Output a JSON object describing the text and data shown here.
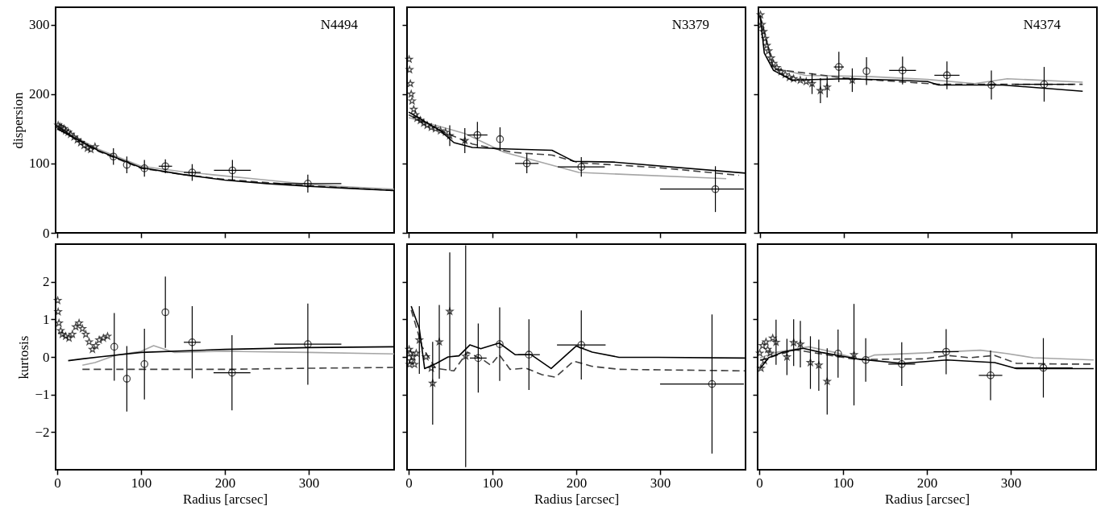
{
  "chart_data": [
    {
      "type": "scatter",
      "title": "N4494",
      "ylabel": "dispersion",
      "xlim": [
        -2,
        402
      ],
      "xticks": [
        0,
        100,
        200,
        300
      ],
      "ylim": [
        0,
        325
      ],
      "yticks": [
        0,
        100,
        200,
        300
      ],
      "tick_labels": "y",
      "series": [
        {
          "type": "line",
          "color": "#a6a6a6",
          "line_style": "solid",
          "x": [
            0,
            50,
            100,
            150,
            200,
            250,
            300,
            350,
            402
          ],
          "values": [
            152,
            120,
            96,
            88,
            82,
            76,
            70,
            66,
            63
          ]
        },
        {
          "type": "line",
          "color": "#404040",
          "line_style": "dashed",
          "x": [
            0,
            50,
            100,
            150,
            200,
            300,
            402
          ],
          "values": [
            150,
            117,
            93,
            84,
            77,
            68,
            61
          ]
        },
        {
          "type": "line",
          "color": "#000000",
          "line_style": "solid",
          "x": [
            0,
            50,
            100,
            150,
            200,
            250,
            300,
            350,
            402
          ],
          "values": [
            150,
            118,
            94,
            84,
            76,
            71,
            67,
            64,
            61
          ]
        },
        {
          "type": "scatter",
          "marker": "star",
          "color": "#000000",
          "x": [
            1,
            3,
            5,
            8,
            10,
            13,
            16,
            20,
            24,
            28,
            32,
            36,
            40,
            45
          ],
          "values": [
            155,
            153,
            152,
            150,
            147,
            145,
            142,
            138,
            134,
            130,
            126,
            122,
            120,
            124
          ]
        },
        {
          "marker": "circle",
          "color": "#000000",
          "x": [
            67,
            83,
            104,
            129,
            161,
            209,
            299
          ],
          "values": [
            110,
            98,
            93,
            96,
            87,
            90,
            71
          ],
          "errors": [
            12,
            12,
            12,
            10,
            12,
            15,
            13
          ],
          "xerrors": [
            null,
            null,
            null,
            8,
            10,
            22,
            40
          ]
        }
      ]
    },
    {
      "type": "scatter",
      "title": "N3379",
      "xlim": [
        -2,
        402
      ],
      "xticks": [
        0,
        100,
        200,
        300
      ],
      "ylim": [
        0,
        325
      ],
      "yticks": [
        0,
        100,
        200,
        300
      ],
      "tick_labels": false,
      "series": [
        {
          "type": "line",
          "color": "#a6a6a6",
          "line_style": "solid",
          "x": [
            0,
            67,
            114,
            203,
            379
          ],
          "values": [
            166,
            143,
            116,
            87,
            78
          ]
        },
        {
          "type": "line",
          "color": "#404040",
          "line_style": "dashed",
          "x": [
            0,
            44,
            76,
            124,
            171,
            203,
            298,
            394
          ],
          "values": [
            170,
            144,
            128,
            116,
            112,
            101,
            94,
            83
          ]
        },
        {
          "type": "line",
          "color": "#000000",
          "line_style": "solid",
          "x": [
            0,
            38,
            54,
            76,
            114,
            171,
            184,
            197,
            244,
            402
          ],
          "values": [
            174,
            147,
            130,
            123,
            121,
            119,
            111,
            103,
            102,
            86
          ]
        },
        {
          "type": "scatter",
          "marker": "star",
          "color": "#000000",
          "x": [
            0.5,
            1,
            2,
            3,
            4,
            6,
            8,
            10,
            14,
            18,
            22,
            27,
            32,
            38,
            44,
            49,
            67
          ],
          "values": [
            250,
            235,
            215,
            200,
            190,
            178,
            170,
            165,
            162,
            158,
            155,
            152,
            150,
            147,
            145,
            140,
            133
          ],
          "errors": [
            null,
            null,
            null,
            null,
            null,
            null,
            null,
            null,
            null,
            null,
            null,
            null,
            null,
            null,
            null,
            15,
            18
          ]
        },
        {
          "marker": "circle",
          "color": "#000000",
          "x": [
            82,
            109,
            141,
            206,
            366
          ],
          "values": [
            141,
            135,
            100,
            95,
            63
          ],
          "errors": [
            19,
            17,
            14,
            14,
            33
          ],
          "xerrors": [
            12,
            null,
            14,
            28,
            [
              300,
              400
            ]
          ]
        }
      ]
    },
    {
      "type": "scatter",
      "title": "N4374",
      "xlim": [
        -2,
        402
      ],
      "xticks": [
        0,
        100,
        200,
        300
      ],
      "ylim": [
        0,
        325
      ],
      "yticks": [
        0,
        100,
        200,
        300
      ],
      "tick_labels": false,
      "series": [
        {
          "type": "line",
          "color": "#a6a6a6",
          "line_style": "solid",
          "x": [
            0,
            16,
            54,
            133,
            200,
            256,
            295,
            385
          ],
          "values": [
            310,
            238,
            227,
            225,
            221,
            215,
            222,
            217
          ]
        },
        {
          "type": "line",
          "color": "#404040",
          "line_style": "dashed",
          "x": [
            0,
            16,
            101,
            213,
            385
          ],
          "values": [
            312,
            236,
            223,
            214,
            214
          ]
        },
        {
          "type": "line",
          "color": "#000000",
          "line_style": "solid",
          "x": [
            0,
            5,
            16,
            38,
            101,
            165,
            200,
            213,
            289,
            385
          ],
          "values": [
            314,
            259,
            234,
            220,
            222,
            220,
            218,
            213,
            213,
            204
          ]
        },
        {
          "type": "scatter",
          "marker": "star",
          "color": "#000000",
          "x": [
            0.5,
            2,
            4,
            6,
            8,
            10,
            13,
            16,
            20,
            25,
            30,
            35,
            40,
            48,
            55,
            62,
            72,
            80,
            110
          ],
          "values": [
            314,
            300,
            290,
            280,
            270,
            262,
            252,
            244,
            238,
            232,
            228,
            224,
            222,
            220,
            218,
            215,
            205,
            210,
            220
          ],
          "errors": [
            null,
            null,
            null,
            null,
            null,
            null,
            null,
            null,
            null,
            null,
            null,
            null,
            null,
            null,
            null,
            15,
            18,
            15,
            17
          ]
        },
        {
          "marker": "circle",
          "color": "#000000",
          "x": [
            94,
            127,
            170,
            223,
            276,
            339
          ],
          "values": [
            239,
            233,
            234,
            227,
            213,
            214
          ],
          "errors": [
            22,
            20,
            20,
            20,
            21,
            25
          ],
          "xerrors": [
            6,
            null,
            16,
            15,
            14,
            35
          ]
        }
      ]
    },
    {
      "type": "scatter",
      "xlabel": "Radius [arcsec]",
      "ylabel": "kurtosis",
      "xlim": [
        -2,
        402
      ],
      "xticks": [
        0,
        100,
        200,
        300
      ],
      "ylim": [
        -3,
        3
      ],
      "yticks": [
        -2,
        -1,
        0,
        1,
        2
      ],
      "series": [
        {
          "type": "line",
          "color": "#a6a6a6",
          "line_style": "solid",
          "x": [
            30,
            45,
            70,
            100,
            115,
            140,
            200,
            300,
            402
          ],
          "values": [
            -0.22,
            -0.15,
            0.05,
            0.15,
            0.3,
            0.12,
            0.15,
            0.12,
            0.08
          ]
        },
        {
          "type": "line",
          "color": "#404040",
          "line_style": "dashed",
          "x": [
            30,
            100,
            200,
            300,
            402
          ],
          "values": [
            -0.33,
            -0.33,
            -0.33,
            -0.3,
            -0.28
          ]
        },
        {
          "type": "line",
          "color": "#000000",
          "line_style": "solid",
          "x": [
            13,
            30,
            50,
            100,
            200,
            300,
            402
          ],
          "values": [
            -0.1,
            -0.05,
            0,
            0.12,
            0.2,
            0.25,
            0.27
          ]
        },
        {
          "type": "scatter",
          "marker": "star",
          "color": "#000000",
          "x": [
            0.5,
            1,
            2,
            4,
            6,
            10,
            14,
            18,
            22,
            26,
            30,
            34,
            38,
            42,
            46,
            50,
            55,
            60
          ],
          "values": [
            1.5,
            1.2,
            0.9,
            0.7,
            0.6,
            0.55,
            0.5,
            0.6,
            0.8,
            0.9,
            0.75,
            0.6,
            0.4,
            0.2,
            0.3,
            0.45,
            0.5,
            0.55
          ]
        },
        {
          "marker": "circle",
          "color": "#000000",
          "x": [
            68,
            83,
            104,
            129,
            161,
            208.5,
            299
          ],
          "values": [
            0.27,
            -0.58,
            -0.19,
            1.19,
            0.39,
            -0.42,
            0.34
          ],
          "errors": [
            0.9,
            0.87,
            0.94,
            0.95,
            0.96,
            1.0,
            1.08
          ],
          "xerrors": [
            null,
            null,
            null,
            null,
            10,
            22,
            40
          ]
        }
      ]
    },
    {
      "type": "scatter",
      "xlabel": "Radius [arcsec]",
      "xlim": [
        -2,
        402
      ],
      "xticks": [
        0,
        100,
        200,
        300
      ],
      "ylim": [
        -3,
        3
      ],
      "yticks": [
        -2,
        -1,
        0,
        1,
        2
      ],
      "tick_labels": "x",
      "series": [
        {
          "type": "line",
          "color": "#404040",
          "line_style": "dashed",
          "x": [
            3,
            16,
            32,
            54,
            70,
            89,
            98,
            108,
            121,
            140,
            159,
            175,
            197,
            219,
            251,
            401
          ],
          "values": [
            1.25,
            0.27,
            -0.3,
            -0.37,
            0.13,
            -0.08,
            -0.22,
            0.06,
            -0.33,
            -0.3,
            -0.47,
            -0.54,
            -0.11,
            -0.25,
            -0.33,
            -0.37
          ]
        },
        {
          "type": "line",
          "color": "#000000",
          "line_style": "solid",
          "x": [
            3,
            12.7,
            19,
            33,
            47,
            60,
            73,
            86,
            108,
            127,
            146,
            170,
            200,
            219,
            251,
            298,
            401
          ],
          "values": [
            1.35,
            0.75,
            -0.31,
            -0.17,
            0,
            0.03,
            0.32,
            0.22,
            0.37,
            0.06,
            0.06,
            -0.31,
            0.29,
            0.13,
            -0.01,
            -0.01,
            -0.03
          ]
        },
        {
          "type": "scatter",
          "marker": "star",
          "color": "#000000",
          "x": [
            0.5,
            1,
            2,
            3,
            5,
            7,
            9,
            12.7,
            20.6,
            27,
            28.6,
            36.5,
            49,
            68
          ],
          "values": [
            0.2,
            -0.2,
            0.1,
            -0.1,
            0,
            -0.2,
            0.1,
            0.45,
            0,
            -0.3,
            -0.7,
            0.4,
            1.21,
            0.02
          ],
          "errors": [
            null,
            null,
            null,
            null,
            null,
            null,
            null,
            0.9,
            null,
            null,
            1.1,
            0.98,
            1.57,
            2.95
          ]
        },
        {
          "marker": "circle",
          "color": "#000000",
          "x": [
            83,
            108.6,
            143.5,
            206,
            362
          ],
          "values": [
            -0.03,
            0.34,
            0.06,
            0.32,
            -0.72
          ],
          "errors": [
            0.92,
            0.98,
            0.94,
            0.92,
            1.85
          ],
          "xerrors": [
            10,
            null,
            13,
            29,
            [
              300,
              400
            ]
          ]
        }
      ]
    },
    {
      "type": "scatter",
      "xlabel": "Radius [arcsec]",
      "xlim": [
        -2,
        402
      ],
      "xticks": [
        0,
        100,
        200,
        300
      ],
      "ylim": [
        -3,
        3
      ],
      "yticks": [
        -2,
        -1,
        0,
        1,
        2
      ],
      "tick_labels": "x",
      "series": [
        {
          "type": "line",
          "color": "#a6a6a6",
          "line_style": "solid",
          "x": [
            1,
            20,
            59,
            90,
            122,
            137,
            200,
            264,
            295,
            327,
            399
          ],
          "values": [
            -0.02,
            0.12,
            0.27,
            0.12,
            -0.08,
            0.05,
            0.11,
            0.18,
            0.09,
            -0.02,
            -0.08
          ]
        },
        {
          "type": "line",
          "color": "#404040",
          "line_style": "dashed",
          "x": [
            1,
            43,
            116,
            197,
            225,
            251,
            281,
            307,
            361,
            399
          ],
          "values": [
            -0.09,
            0.19,
            -0.07,
            -0.05,
            0.04,
            -0.02,
            0.04,
            -0.17,
            -0.19,
            -0.19
          ]
        },
        {
          "type": "line",
          "color": "#000000",
          "line_style": "solid",
          "x": [
            1,
            11,
            27,
            52,
            74,
            116,
            170,
            224,
            281,
            307,
            399
          ],
          "values": [
            -0.31,
            -0.02,
            0.12,
            0.23,
            0.12,
            -0.05,
            -0.17,
            -0.08,
            -0.15,
            -0.31,
            -0.31
          ]
        },
        {
          "type": "scatter",
          "marker": "star",
          "color": "#000000",
          "x": [
            0.5,
            2,
            4,
            6,
            8,
            10,
            13,
            16,
            20,
            33,
            41,
            49,
            61,
            71,
            81,
            113
          ],
          "values": [
            0.1,
            -0.3,
            0.3,
            -0.1,
            0.4,
            0.2,
            0.1,
            0.5,
            0.39,
            0,
            0.38,
            0.34,
            -0.15,
            -0.22,
            -0.65,
            0.06
          ],
          "errors": [
            null,
            null,
            null,
            null,
            null,
            null,
            null,
            null,
            0.6,
            0.48,
            0.62,
            0.62,
            0.7,
            0.68,
            0.88,
            1.35
          ]
        },
        {
          "marker": "circle",
          "color": "#000000",
          "x": [
            94,
            127,
            170,
            223,
            276,
            339
          ],
          "values": [
            0.09,
            -0.08,
            -0.19,
            0.14,
            -0.49,
            -0.29
          ],
          "errors": [
            0.64,
            0.58,
            0.58,
            0.6,
            0.66,
            0.79
          ],
          "xerrors": [
            null,
            null,
            16,
            15,
            14,
            35
          ]
        }
      ]
    }
  ]
}
